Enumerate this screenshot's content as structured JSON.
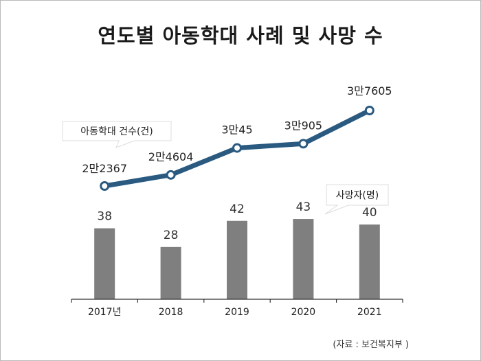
{
  "title": "연도별 아동학대 사례 및 사망 수",
  "source": "(자료 : 보건복지부 )",
  "chart_data": {
    "type": "bar+line",
    "categories": [
      "2017년",
      "2018",
      "2019",
      "2020",
      "2021"
    ],
    "series": [
      {
        "name": "아동학대 건수(건)",
        "type": "line",
        "values": [
          22367,
          24604,
          30045,
          30905,
          37605
        ],
        "labels": [
          "2만2367",
          "2만4604",
          "3만45",
          "3만905",
          "3만7605"
        ],
        "color": "#2a5a80"
      },
      {
        "name": "사망자(명)",
        "type": "bar",
        "values": [
          38,
          28,
          42,
          43,
          40
        ],
        "labels": [
          "38",
          "28",
          "42",
          "43",
          "40"
        ],
        "color": "#7f7f7f"
      }
    ],
    "grid": false
  }
}
